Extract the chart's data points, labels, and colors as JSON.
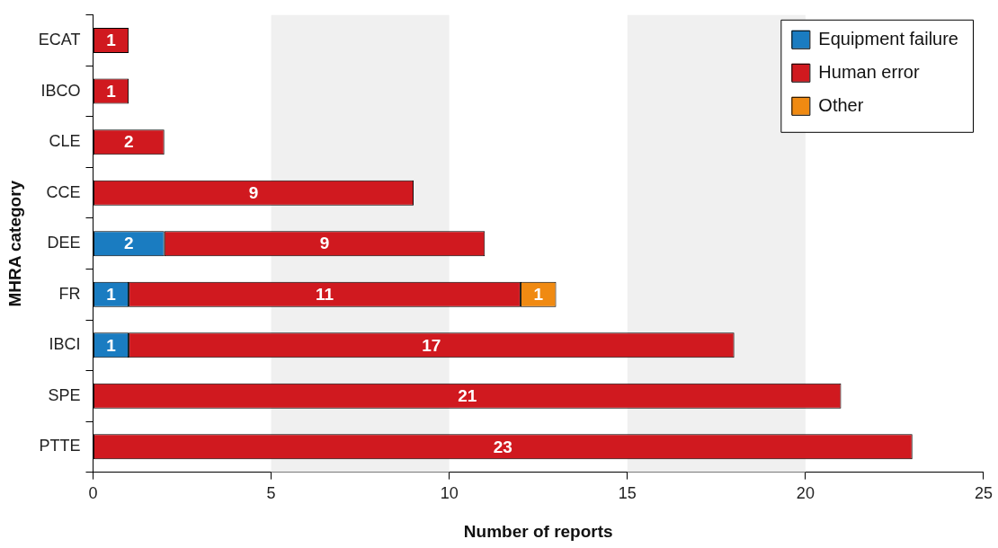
{
  "chart_data": {
    "type": "bar",
    "orientation": "horizontal",
    "stacked": true,
    "xlabel": "Number of reports",
    "ylabel": "MHRA category",
    "categories": [
      "ECAT",
      "IBCO",
      "CLE",
      "CCE",
      "DEE",
      "FR",
      "IBCI",
      "SPE",
      "PTTE"
    ],
    "series": [
      {
        "name": "Equipment failure",
        "color": "#1a7cc1",
        "values": [
          null,
          null,
          null,
          null,
          2,
          1,
          1,
          null,
          null
        ]
      },
      {
        "name": "Human error",
        "color": "#d0191f",
        "values": [
          1,
          1,
          2,
          9,
          9,
          11,
          17,
          21,
          23
        ]
      },
      {
        "name": "Other",
        "color": "#f08a12",
        "values": [
          null,
          null,
          null,
          null,
          null,
          1,
          null,
          null,
          null
        ]
      }
    ],
    "xlim": [
      0,
      25
    ],
    "xticks": [
      0,
      5,
      10,
      15,
      20,
      25
    ],
    "bands": [
      {
        "axis": "x",
        "from": 5,
        "to": 10,
        "color": "#f0f0f0"
      },
      {
        "axis": "x",
        "from": 15,
        "to": 20,
        "color": "#f0f0f0"
      }
    ],
    "grid": false,
    "legend": "top right",
    "data_labels": true
  }
}
